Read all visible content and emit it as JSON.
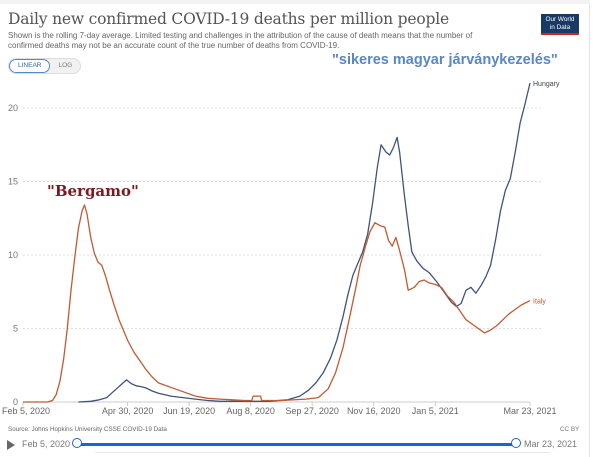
{
  "header": {
    "title": "Daily new confirmed COVID-19 deaths per million people",
    "subtitle": "Shown is the rolling 7-day average. Limited testing and challenges in the attribution of the cause of death means that the number of confirmed deaths may not be an accurate count of the true number of deaths from COVID-19.",
    "logo_line1": "Our World",
    "logo_line2": "in Data"
  },
  "scale_toggle": {
    "options": [
      "LINEAR",
      "LOG"
    ],
    "selected": "LINEAR"
  },
  "annotations": {
    "hungary": "\"sikeres magyar járványkezelés\"",
    "italy": "\"Bergamo\""
  },
  "footer": {
    "source": "Source: Johns Hopkins University CSSE COVID-19 Data",
    "license": "CC BY",
    "timeline_start": "Feb 5, 2020",
    "timeline_end": "Mar 23, 2021"
  },
  "colors": {
    "hungary": "#3f5478",
    "italy": "#c15a34",
    "slider": "#1468d3"
  },
  "chart_data": {
    "type": "line",
    "title": "Daily new confirmed COVID-19 deaths per million people",
    "xlabel": "",
    "ylabel": "",
    "x_unit": "days since Feb 5, 2020",
    "xlim": [
      0,
      412
    ],
    "ylim": [
      0,
      22
    ],
    "y_ticks": [
      0,
      5,
      10,
      15,
      20
    ],
    "x_ticks": [
      {
        "day": 0,
        "label": "Feb 5, 2020"
      },
      {
        "day": 85,
        "label": "Apr 30, 2020"
      },
      {
        "day": 135,
        "label": "Jun 19, 2020"
      },
      {
        "day": 185,
        "label": "Aug 8, 2020"
      },
      {
        "day": 235,
        "label": "Sep 27, 2020"
      },
      {
        "day": 285,
        "label": "Nov 16, 2020"
      },
      {
        "day": 335,
        "label": "Jan 5, 2021"
      },
      {
        "day": 412,
        "label": "Mar 23, 2021"
      }
    ],
    "grid": true,
    "legend": "line-end labels",
    "series": [
      {
        "name": "Hungary",
        "points": [
          [
            45,
            0
          ],
          [
            55,
            0.05
          ],
          [
            62,
            0.15
          ],
          [
            68,
            0.3
          ],
          [
            72,
            0.6
          ],
          [
            76,
            0.9
          ],
          [
            80,
            1.2
          ],
          [
            84,
            1.5
          ],
          [
            85,
            1.45
          ],
          [
            88,
            1.25
          ],
          [
            92,
            1.1
          ],
          [
            96,
            1.05
          ],
          [
            100,
            0.95
          ],
          [
            105,
            0.75
          ],
          [
            110,
            0.6
          ],
          [
            115,
            0.5
          ],
          [
            120,
            0.4
          ],
          [
            130,
            0.3
          ],
          [
            140,
            0.2
          ],
          [
            150,
            0.1
          ],
          [
            160,
            0.05
          ],
          [
            180,
            0.05
          ],
          [
            200,
            0.05
          ],
          [
            215,
            0.15
          ],
          [
            225,
            0.4
          ],
          [
            232,
            0.8
          ],
          [
            238,
            1.3
          ],
          [
            244,
            2.0
          ],
          [
            250,
            3.0
          ],
          [
            255,
            4.2
          ],
          [
            260,
            5.8
          ],
          [
            264,
            7.3
          ],
          [
            268,
            8.6
          ],
          [
            272,
            9.4
          ],
          [
            276,
            10.2
          ],
          [
            280,
            11.4
          ],
          [
            284,
            13.5
          ],
          [
            288,
            16.0
          ],
          [
            291,
            17.5
          ],
          [
            295,
            17.0
          ],
          [
            298,
            16.8
          ],
          [
            301,
            17.3
          ],
          [
            304,
            18.0
          ],
          [
            306,
            17.0
          ],
          [
            310,
            14.0
          ],
          [
            313,
            12.0
          ],
          [
            316,
            10.2
          ],
          [
            320,
            9.6
          ],
          [
            325,
            9.1
          ],
          [
            330,
            8.8
          ],
          [
            336,
            8.2
          ],
          [
            342,
            7.5
          ],
          [
            348,
            6.8
          ],
          [
            352,
            6.5
          ],
          [
            356,
            6.7
          ],
          [
            360,
            7.6
          ],
          [
            364,
            7.8
          ],
          [
            368,
            7.4
          ],
          [
            372,
            7.9
          ],
          [
            376,
            8.5
          ],
          [
            380,
            9.3
          ],
          [
            384,
            11.0
          ],
          [
            388,
            13.0
          ],
          [
            392,
            14.4
          ],
          [
            396,
            15.2
          ],
          [
            400,
            17.0
          ],
          [
            404,
            19.0
          ],
          [
            408,
            20.3
          ],
          [
            412,
            21.7
          ]
        ]
      },
      {
        "name": "Italy",
        "points": [
          [
            0,
            0
          ],
          [
            20,
            0
          ],
          [
            24,
            0.1
          ],
          [
            27,
            0.5
          ],
          [
            30,
            1.4
          ],
          [
            33,
            2.9
          ],
          [
            36,
            5.0
          ],
          [
            39,
            7.6
          ],
          [
            42,
            9.8
          ],
          [
            45,
            11.8
          ],
          [
            48,
            13.0
          ],
          [
            50,
            13.4
          ],
          [
            52,
            12.8
          ],
          [
            55,
            11.2
          ],
          [
            58,
            10.1
          ],
          [
            61,
            9.5
          ],
          [
            64,
            9.3
          ],
          [
            67,
            8.6
          ],
          [
            70,
            7.7
          ],
          [
            74,
            6.6
          ],
          [
            78,
            5.6
          ],
          [
            82,
            4.8
          ],
          [
            85,
            4.2
          ],
          [
            90,
            3.4
          ],
          [
            95,
            2.8
          ],
          [
            100,
            2.2
          ],
          [
            105,
            1.7
          ],
          [
            110,
            1.3
          ],
          [
            120,
            1.0
          ],
          [
            130,
            0.7
          ],
          [
            140,
            0.4
          ],
          [
            150,
            0.25
          ],
          [
            160,
            0.2
          ],
          [
            170,
            0.15
          ],
          [
            180,
            0.1
          ],
          [
            186,
            0.1
          ],
          [
            187,
            0.4
          ],
          [
            193,
            0.4
          ],
          [
            194,
            0.1
          ],
          [
            210,
            0.1
          ],
          [
            230,
            0.2
          ],
          [
            240,
            0.3
          ],
          [
            248,
            0.9
          ],
          [
            254,
            2.0
          ],
          [
            260,
            3.7
          ],
          [
            265,
            5.6
          ],
          [
            270,
            7.6
          ],
          [
            274,
            9.3
          ],
          [
            278,
            10.5
          ],
          [
            282,
            11.6
          ],
          [
            286,
            12.2
          ],
          [
            290,
            12.0
          ],
          [
            294,
            11.9
          ],
          [
            297,
            11.0
          ],
          [
            300,
            10.6
          ],
          [
            303,
            11.2
          ],
          [
            306,
            10.3
          ],
          [
            310,
            9.0
          ],
          [
            313,
            7.6
          ],
          [
            318,
            7.8
          ],
          [
            322,
            8.2
          ],
          [
            326,
            8.3
          ],
          [
            330,
            8.1
          ],
          [
            335,
            8.0
          ],
          [
            340,
            7.8
          ],
          [
            345,
            7.2
          ],
          [
            350,
            6.8
          ],
          [
            355,
            6.2
          ],
          [
            360,
            5.6
          ],
          [
            365,
            5.3
          ],
          [
            370,
            5.0
          ],
          [
            375,
            4.7
          ],
          [
            380,
            4.9
          ],
          [
            385,
            5.2
          ],
          [
            390,
            5.6
          ],
          [
            395,
            6.0
          ],
          [
            400,
            6.3
          ],
          [
            405,
            6.6
          ],
          [
            412,
            6.9
          ]
        ]
      }
    ]
  }
}
